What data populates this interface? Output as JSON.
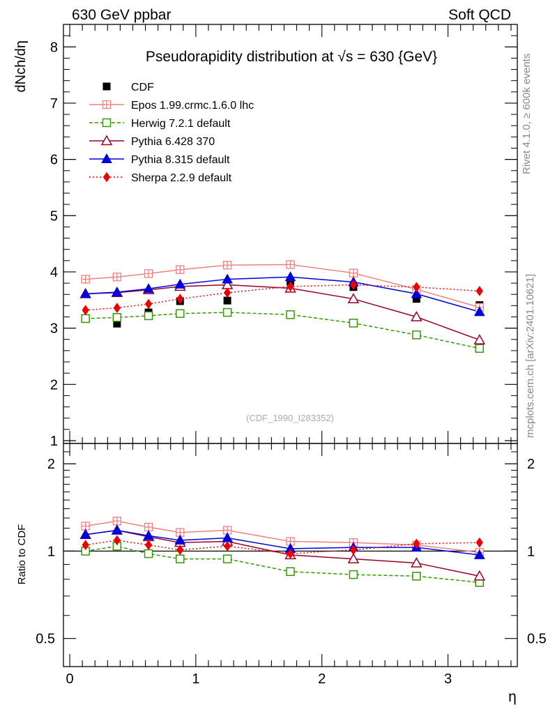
{
  "header": {
    "left": "630 GeV ppbar",
    "right": "Soft QCD"
  },
  "side_text": {
    "rivet": "Rivet 4.1.0, ≥ 600k events",
    "mcplots": "mcplots.cern.ch [arXiv:2401.10621]"
  },
  "chart_data": [
    {
      "type": "scatter",
      "panel": "main",
      "title": "Pseudorapidity distribution at √s = 630 {GeV}",
      "ylabel": "dNch/dη",
      "watermark": "(CDF_1990_I283352)",
      "xlim": [
        -0.05,
        3.55
      ],
      "ylim": [
        0.95,
        8.4
      ],
      "yticks": [
        "1",
        "2",
        "3",
        "4",
        "5",
        "6",
        "7",
        "8"
      ],
      "legend_position": "top-left",
      "x": [
        0.125,
        0.375,
        0.625,
        0.875,
        1.25,
        1.75,
        2.25,
        2.75,
        3.25
      ],
      "series": [
        {
          "name": "CDF",
          "color": "#000000",
          "style": "data",
          "values": [
            3.17,
            3.08,
            3.28,
            3.48,
            3.49,
            3.83,
            3.73,
            3.52,
            3.41
          ]
        },
        {
          "name": "Epos 1.99.crmc.1.6.0 lhc",
          "color": "#f08080",
          "style": "cross",
          "values": [
            3.87,
            3.91,
            3.97,
            4.04,
            4.12,
            4.13,
            3.98,
            3.69,
            3.37
          ]
        },
        {
          "name": "Herwig 7.2.1 default",
          "color": "#339900",
          "style": "square",
          "values": [
            3.17,
            3.19,
            3.22,
            3.26,
            3.28,
            3.24,
            3.09,
            2.88,
            2.64
          ]
        },
        {
          "name": "Pythia 6.428 370",
          "color": "#990022",
          "style": "triangle-open",
          "values": [
            3.61,
            3.63,
            3.68,
            3.74,
            3.77,
            3.71,
            3.52,
            3.2,
            2.79
          ]
        },
        {
          "name": "Pythia 8.315 default",
          "color": "#0000dd",
          "style": "triangle",
          "values": [
            3.61,
            3.64,
            3.7,
            3.78,
            3.87,
            3.91,
            3.82,
            3.61,
            3.29
          ]
        },
        {
          "name": "Sherpa 2.2.9 default",
          "color": "#ee0000",
          "style": "diamond",
          "values": [
            3.32,
            3.36,
            3.43,
            3.52,
            3.63,
            3.74,
            3.77,
            3.73,
            3.66
          ]
        }
      ]
    },
    {
      "type": "line",
      "panel": "ratio",
      "ylabel": "Ratio to CDF",
      "xlabel": "η",
      "xlim": [
        -0.05,
        3.55
      ],
      "ylim": [
        0.4,
        2.35
      ],
      "scale": "log",
      "yticks": [
        0.5,
        1,
        2
      ],
      "ytick_labels": [
        "0.5",
        "1",
        "2"
      ],
      "xticks": [
        0,
        1,
        2,
        3
      ],
      "xtick_labels": [
        "0",
        "1",
        "2",
        "3"
      ],
      "x": [
        0.125,
        0.375,
        0.625,
        0.875,
        1.25,
        1.75,
        2.25,
        2.75,
        3.25
      ],
      "series": [
        {
          "name": "Epos 1.99.crmc.1.6.0 lhc",
          "values": [
            1.22,
            1.27,
            1.21,
            1.16,
            1.18,
            1.08,
            1.07,
            1.05,
            0.99
          ]
        },
        {
          "name": "Herwig 7.2.1 default",
          "values": [
            1.0,
            1.04,
            0.98,
            0.94,
            0.94,
            0.85,
            0.83,
            0.82,
            0.78
          ]
        },
        {
          "name": "Pythia 6.428 370",
          "values": [
            1.14,
            1.18,
            1.12,
            1.07,
            1.08,
            0.97,
            0.94,
            0.91,
            0.82
          ]
        },
        {
          "name": "Pythia 8.315 default",
          "values": [
            1.14,
            1.18,
            1.13,
            1.09,
            1.11,
            1.02,
            1.03,
            1.03,
            0.97
          ]
        },
        {
          "name": "Sherpa 2.2.9 default",
          "values": [
            1.05,
            1.09,
            1.05,
            1.01,
            1.04,
            0.98,
            1.01,
            1.06,
            1.07
          ]
        }
      ]
    }
  ]
}
